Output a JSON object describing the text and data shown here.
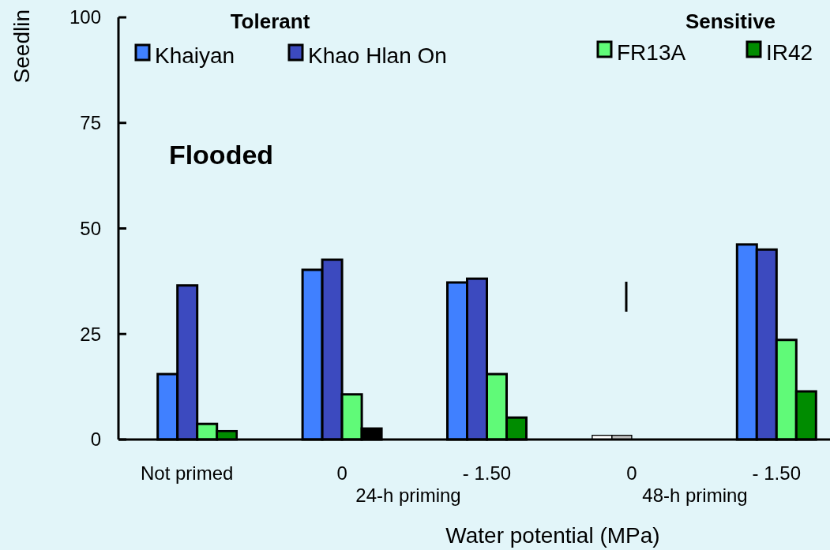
{
  "chart_data": {
    "type": "bar",
    "ylabel": "Seedlin",
    "xlabel": "Water potential (MPa)",
    "categories": [
      "Not primed",
      "0",
      "- 1.50",
      "0",
      "- 1.50"
    ],
    "series": [
      {
        "name": "Khaiyan",
        "color": "#4080ff",
        "colors": [
          "#4080ff",
          "#4080ff",
          "#4080ff",
          "#ffffff",
          "#4080ff"
        ],
        "values": [
          15.5,
          40.2,
          37.2,
          1,
          46.2
        ]
      },
      {
        "name": "Khao Hlan On",
        "color": "#3c4abf",
        "colors": [
          "#3c4abf",
          "#3c4abf",
          "#3c4abf",
          "#c0c0c0",
          "#3c4abf"
        ],
        "values": [
          36.5,
          42.6,
          38.1,
          1,
          45
        ]
      },
      {
        "name": "FR13A",
        "color": "#60fa78",
        "values": [
          3.7,
          10.7,
          15.5,
          null,
          23.6
        ]
      },
      {
        "name": "IR42",
        "color": "#008c00",
        "colors": [
          "#008c00",
          "#000000",
          "#008c00",
          null,
          "#008c00"
        ],
        "values": [
          2,
          2.6,
          5.2,
          null,
          11.4
        ]
      }
    ],
    "ylim": [
      0,
      100
    ],
    "yticks": [
      0,
      25,
      50,
      75,
      100
    ],
    "legend": "top",
    "annotations": [
      "Tolerant",
      "Sensitive",
      "Flooded",
      "24-h priming",
      "48-h priming"
    ]
  }
}
